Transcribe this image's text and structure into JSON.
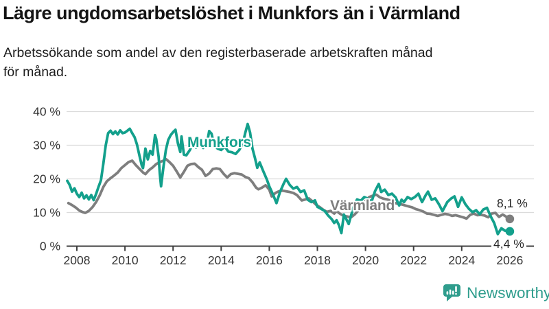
{
  "header": {
    "title": "Lägre ungdomsarbetslöshet i Munkfors än i Värmland",
    "subtitle_lines": [
      "Arbetssökande som andel av den registerbaserade arbetskraften månad",
      "för månad."
    ]
  },
  "chart_data": {
    "type": "line",
    "title": "Lägre ungdomsarbetslöshet i Munkfors än i Värmland",
    "xlabel": "",
    "ylabel": "",
    "ylim": [
      0,
      40
    ],
    "xlim": [
      2007.5,
      2027
    ],
    "grid": true,
    "legend_position": "inline-labels",
    "y_ticks": [
      {
        "value": 0,
        "label": "0 %"
      },
      {
        "value": 10,
        "label": "10 %"
      },
      {
        "value": 20,
        "label": "20 %"
      },
      {
        "value": 30,
        "label": "30 %"
      },
      {
        "value": 40,
        "label": "40 %"
      }
    ],
    "x_ticks": [
      {
        "value": 2008,
        "label": "2008"
      },
      {
        "value": 2010,
        "label": "2010"
      },
      {
        "value": 2012,
        "label": "2012"
      },
      {
        "value": 2014,
        "label": "2014"
      },
      {
        "value": 2016,
        "label": "2016"
      },
      {
        "value": 2018,
        "label": "2018"
      },
      {
        "value": 2020,
        "label": "2020"
      },
      {
        "value": 2022,
        "label": "2022"
      },
      {
        "value": 2024,
        "label": "2024"
      },
      {
        "value": 2026,
        "label": "2026"
      }
    ],
    "series": [
      {
        "name": "Munkfors",
        "color": "#13A08C",
        "end_value": 4.4,
        "end_value_label": "4,4 %",
        "points": [
          [
            2007.6,
            19.4
          ],
          [
            2007.7,
            18.2
          ],
          [
            2007.8,
            16.2
          ],
          [
            2007.9,
            17.2
          ],
          [
            2008.0,
            15.6
          ],
          [
            2008.1,
            14.6
          ],
          [
            2008.2,
            15.9
          ],
          [
            2008.3,
            14.2
          ],
          [
            2008.4,
            15.1
          ],
          [
            2008.5,
            13.9
          ],
          [
            2008.6,
            15.2
          ],
          [
            2008.7,
            13.7
          ],
          [
            2008.8,
            15.5
          ],
          [
            2008.9,
            17.6
          ],
          [
            2009.0,
            19.6
          ],
          [
            2009.1,
            24.5
          ],
          [
            2009.2,
            30.0
          ],
          [
            2009.3,
            33.6
          ],
          [
            2009.4,
            34.3
          ],
          [
            2009.5,
            33.3
          ],
          [
            2009.6,
            34.1
          ],
          [
            2009.7,
            33.2
          ],
          [
            2009.8,
            34.4
          ],
          [
            2009.9,
            33.6
          ],
          [
            2010.0,
            33.8
          ],
          [
            2010.1,
            34.3
          ],
          [
            2010.2,
            34.9
          ],
          [
            2010.3,
            33.6
          ],
          [
            2010.4,
            32.4
          ],
          [
            2010.5,
            30.2
          ],
          [
            2010.6,
            27.0
          ],
          [
            2010.7,
            24.0
          ],
          [
            2010.75,
            23.2
          ],
          [
            2010.85,
            29.0
          ],
          [
            2010.95,
            25.8
          ],
          [
            2011.05,
            28.3
          ],
          [
            2011.15,
            27.2
          ],
          [
            2011.25,
            33.0
          ],
          [
            2011.3,
            31.8
          ],
          [
            2011.4,
            26.5
          ],
          [
            2011.45,
            21.5
          ],
          [
            2011.5,
            17.8
          ],
          [
            2011.6,
            23.6
          ],
          [
            2011.7,
            28.6
          ],
          [
            2011.8,
            31.6
          ],
          [
            2011.9,
            33.0
          ],
          [
            2012.0,
            33.9
          ],
          [
            2012.1,
            34.6
          ],
          [
            2012.2,
            30.6
          ],
          [
            2012.3,
            28.0
          ],
          [
            2012.35,
            32.6
          ],
          [
            2012.45,
            27.2
          ],
          [
            2012.55,
            27.0
          ],
          [
            2012.7,
            28.6
          ],
          [
            2012.8,
            30.1
          ],
          [
            2012.95,
            29.3
          ],
          [
            2013.1,
            30.4
          ],
          [
            2013.25,
            29.2
          ],
          [
            2013.4,
            30.2
          ],
          [
            2013.5,
            34.2
          ],
          [
            2013.6,
            33.4
          ],
          [
            2013.7,
            30.2
          ],
          [
            2013.85,
            29.0
          ],
          [
            2014.0,
            28.6
          ],
          [
            2014.15,
            29.6
          ],
          [
            2014.3,
            28.1
          ],
          [
            2014.45,
            27.9
          ],
          [
            2014.6,
            27.4
          ],
          [
            2014.75,
            28.6
          ],
          [
            2014.9,
            30.5
          ],
          [
            2015.0,
            33.6
          ],
          [
            2015.1,
            36.3
          ],
          [
            2015.2,
            33.8
          ],
          [
            2015.3,
            29.0
          ],
          [
            2015.4,
            26.3
          ],
          [
            2015.5,
            23.3
          ],
          [
            2015.6,
            24.9
          ],
          [
            2015.75,
            22.3
          ],
          [
            2015.9,
            19.8
          ],
          [
            2016.0,
            17.8
          ],
          [
            2016.15,
            15.4
          ],
          [
            2016.3,
            12.8
          ],
          [
            2016.45,
            16.2
          ],
          [
            2016.6,
            18.6
          ],
          [
            2016.7,
            20.0
          ],
          [
            2016.85,
            18.2
          ],
          [
            2017.0,
            17.1
          ],
          [
            2017.15,
            17.6
          ],
          [
            2017.3,
            16.1
          ],
          [
            2017.45,
            16.6
          ],
          [
            2017.6,
            13.8
          ],
          [
            2017.75,
            13.1
          ],
          [
            2017.9,
            13.6
          ],
          [
            2018.0,
            11.7
          ],
          [
            2018.15,
            11.1
          ],
          [
            2018.3,
            10.5
          ],
          [
            2018.45,
            9.1
          ],
          [
            2018.6,
            8.0
          ],
          [
            2018.7,
            6.9
          ],
          [
            2018.8,
            7.7
          ],
          [
            2018.9,
            6.2
          ],
          [
            2019.0,
            3.9
          ],
          [
            2019.1,
            9.4
          ],
          [
            2019.3,
            6.6
          ],
          [
            2019.5,
            11.7
          ],
          [
            2019.65,
            13.9
          ],
          [
            2019.8,
            13.5
          ],
          [
            2019.95,
            14.6
          ],
          [
            2020.1,
            14.1
          ],
          [
            2020.25,
            13.2
          ],
          [
            2020.4,
            16.4
          ],
          [
            2020.55,
            18.5
          ],
          [
            2020.65,
            16.1
          ],
          [
            2020.8,
            16.8
          ],
          [
            2020.95,
            15.2
          ],
          [
            2021.1,
            15.6
          ],
          [
            2021.25,
            14.5
          ],
          [
            2021.4,
            12.1
          ],
          [
            2021.5,
            13.8
          ],
          [
            2021.6,
            13.1
          ],
          [
            2021.75,
            14.6
          ],
          [
            2021.9,
            14.0
          ],
          [
            2022.05,
            14.6
          ],
          [
            2022.2,
            15.6
          ],
          [
            2022.35,
            13.1
          ],
          [
            2022.5,
            15.1
          ],
          [
            2022.6,
            16.2
          ],
          [
            2022.75,
            13.8
          ],
          [
            2022.9,
            14.2
          ],
          [
            2023.05,
            12.5
          ],
          [
            2023.2,
            10.4
          ],
          [
            2023.4,
            13.1
          ],
          [
            2023.55,
            14.1
          ],
          [
            2023.7,
            14.8
          ],
          [
            2023.85,
            11.7
          ],
          [
            2024.0,
            14.5
          ],
          [
            2024.15,
            12.5
          ],
          [
            2024.3,
            11.1
          ],
          [
            2024.45,
            10.1
          ],
          [
            2024.6,
            10.7
          ],
          [
            2024.75,
            9.5
          ],
          [
            2024.9,
            10.9
          ],
          [
            2025.05,
            11.4
          ],
          [
            2025.2,
            8.9
          ],
          [
            2025.35,
            6.9
          ],
          [
            2025.5,
            3.6
          ],
          [
            2025.65,
            5.3
          ],
          [
            2025.8,
            4.6
          ],
          [
            2026.0,
            4.4
          ]
        ]
      },
      {
        "name": "Värmland",
        "color": "#7E7E7E",
        "end_value": 8.1,
        "end_value_label": "8,1 %",
        "points": [
          [
            2007.65,
            12.8
          ],
          [
            2007.8,
            12.2
          ],
          [
            2007.95,
            11.5
          ],
          [
            2008.1,
            10.6
          ],
          [
            2008.25,
            10.1
          ],
          [
            2008.35,
            9.9
          ],
          [
            2008.5,
            10.5
          ],
          [
            2008.65,
            11.6
          ],
          [
            2008.8,
            13.1
          ],
          [
            2008.95,
            15.1
          ],
          [
            2009.1,
            17.6
          ],
          [
            2009.25,
            19.3
          ],
          [
            2009.4,
            20.2
          ],
          [
            2009.55,
            21.0
          ],
          [
            2009.7,
            21.9
          ],
          [
            2009.85,
            23.2
          ],
          [
            2010.0,
            24.1
          ],
          [
            2010.15,
            25.0
          ],
          [
            2010.3,
            25.4
          ],
          [
            2010.45,
            24.1
          ],
          [
            2010.6,
            23.0
          ],
          [
            2010.75,
            21.9
          ],
          [
            2010.85,
            21.4
          ],
          [
            2011.0,
            22.6
          ],
          [
            2011.15,
            23.4
          ],
          [
            2011.3,
            24.4
          ],
          [
            2011.45,
            25.0
          ],
          [
            2011.6,
            25.4
          ],
          [
            2011.7,
            25.9
          ],
          [
            2011.85,
            25.0
          ],
          [
            2012.0,
            23.9
          ],
          [
            2012.15,
            22.2
          ],
          [
            2012.3,
            20.4
          ],
          [
            2012.45,
            22.1
          ],
          [
            2012.6,
            23.9
          ],
          [
            2012.75,
            24.4
          ],
          [
            2012.9,
            24.5
          ],
          [
            2013.05,
            23.5
          ],
          [
            2013.2,
            22.7
          ],
          [
            2013.35,
            20.9
          ],
          [
            2013.5,
            21.6
          ],
          [
            2013.65,
            22.9
          ],
          [
            2013.8,
            23.1
          ],
          [
            2013.95,
            22.9
          ],
          [
            2014.1,
            21.5
          ],
          [
            2014.25,
            20.4
          ],
          [
            2014.4,
            21.4
          ],
          [
            2014.55,
            21.7
          ],
          [
            2014.7,
            21.5
          ],
          [
            2014.85,
            21.3
          ],
          [
            2015.0,
            20.6
          ],
          [
            2015.15,
            20.2
          ],
          [
            2015.3,
            19.0
          ],
          [
            2015.45,
            17.4
          ],
          [
            2015.55,
            16.9
          ],
          [
            2015.7,
            17.4
          ],
          [
            2015.85,
            18.1
          ],
          [
            2016.0,
            16.8
          ],
          [
            2016.1,
            14.8
          ],
          [
            2016.25,
            15.8
          ],
          [
            2016.4,
            16.3
          ],
          [
            2016.55,
            16.5
          ],
          [
            2016.7,
            16.3
          ],
          [
            2016.85,
            16.1
          ],
          [
            2017.0,
            15.8
          ],
          [
            2017.15,
            15.2
          ],
          [
            2017.35,
            13.6
          ],
          [
            2017.5,
            13.9
          ],
          [
            2017.65,
            14.2
          ],
          [
            2017.8,
            13.3
          ],
          [
            2017.95,
            12.3
          ],
          [
            2018.1,
            11.6
          ],
          [
            2018.25,
            10.8
          ],
          [
            2018.4,
            10.2
          ],
          [
            2018.55,
            10.5
          ],
          [
            2018.7,
            9.7
          ],
          [
            2018.8,
            10.4
          ],
          [
            2018.95,
            9.6
          ],
          [
            2019.1,
            9.0
          ],
          [
            2019.25,
            8.8
          ],
          [
            2019.4,
            8.6
          ],
          [
            2019.55,
            9.4
          ],
          [
            2019.7,
            10.6
          ],
          [
            2019.85,
            11.9
          ],
          [
            2020.0,
            13.4
          ],
          [
            2020.15,
            14.6
          ],
          [
            2020.3,
            15.0
          ],
          [
            2020.45,
            15.3
          ],
          [
            2020.6,
            14.5
          ],
          [
            2020.75,
            14.1
          ],
          [
            2020.9,
            13.9
          ],
          [
            2021.05,
            13.5
          ],
          [
            2021.2,
            12.9
          ],
          [
            2021.35,
            12.6
          ],
          [
            2021.5,
            12.4
          ],
          [
            2021.65,
            12.1
          ],
          [
            2021.8,
            11.8
          ],
          [
            2021.95,
            11.5
          ],
          [
            2022.1,
            11.0
          ],
          [
            2022.25,
            10.7
          ],
          [
            2022.4,
            10.3
          ],
          [
            2022.55,
            9.7
          ],
          [
            2022.7,
            9.6
          ],
          [
            2022.85,
            9.3
          ],
          [
            2023.0,
            9.0
          ],
          [
            2023.15,
            9.3
          ],
          [
            2023.3,
            9.6
          ],
          [
            2023.45,
            9.4
          ],
          [
            2023.6,
            9.0
          ],
          [
            2023.75,
            9.2
          ],
          [
            2023.9,
            8.9
          ],
          [
            2024.05,
            8.6
          ],
          [
            2024.2,
            8.2
          ],
          [
            2024.35,
            9.3
          ],
          [
            2024.5,
            9.7
          ],
          [
            2024.65,
            9.2
          ],
          [
            2024.8,
            9.3
          ],
          [
            2024.95,
            9.1
          ],
          [
            2025.1,
            8.6
          ],
          [
            2025.25,
            9.7
          ],
          [
            2025.4,
            9.9
          ],
          [
            2025.55,
            8.7
          ],
          [
            2025.7,
            9.4
          ],
          [
            2026.0,
            8.1
          ]
        ]
      }
    ]
  },
  "footer": {
    "brand": "Newsworthy",
    "brand_color": "#2F9D8D"
  },
  "colors": {
    "accent_teal": "#13A08C",
    "line_gray": "#7E7E7E",
    "grid": "#DBDBDB",
    "axis": "#404040",
    "tick_text": "#333333"
  }
}
